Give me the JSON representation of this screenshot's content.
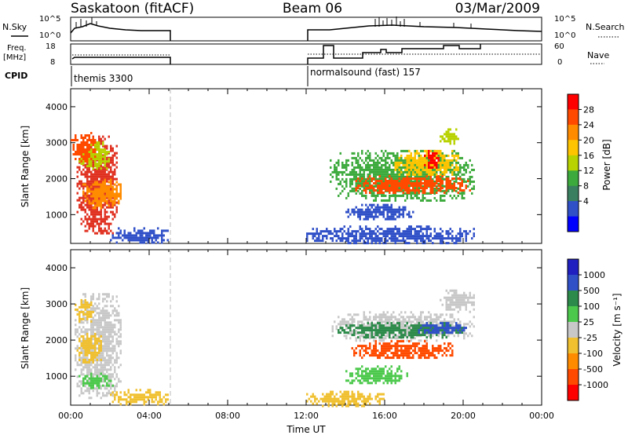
{
  "header": {
    "title": "Saskatoon (fitACF)",
    "beam": "Beam 06",
    "date": "03/Mar/2009"
  },
  "panels": {
    "nsky_label": "N.Sky",
    "nsearch_label": "N.Search",
    "freq_label_1": "Freq.",
    "freq_label_2": "[MHz]",
    "nave_label": "Nave",
    "cpid_label": "CPID",
    "nsky_ticks": [
      "10^5",
      "10^0"
    ],
    "nsearch_ticks": [
      "10^5",
      "10^0"
    ],
    "freq_ticks": [
      "18",
      "8"
    ],
    "nave_ticks": [
      "60",
      "0"
    ],
    "cpid_1": "themis 3300",
    "cpid_2": "normalsound (fast) 157"
  },
  "power_colorbar": {
    "label": "Power [dB]",
    "ticks": [
      "28",
      "24",
      "20",
      "16",
      "12",
      "8",
      "4"
    ],
    "colors": [
      "#ff0000",
      "#ff4a00",
      "#ff8c00",
      "#ffc400",
      "#b8d200",
      "#3caa3c",
      "#3a8060",
      "#3050c8",
      "#0000ff"
    ]
  },
  "velocity_colorbar": {
    "label": "Velocity [m s⁻¹]",
    "ticks": [
      "1000",
      "500",
      "100",
      "25",
      "-25",
      "-100",
      "-500",
      "-1000"
    ],
    "colors": [
      "#2020c0",
      "#3050c8",
      "#2c8a4a",
      "#4cc94c",
      "#c8c8c8",
      "#f0c030",
      "#ff8c00",
      "#ff4a00",
      "#ff0000"
    ]
  },
  "chart_data": [
    {
      "type": "heatmap",
      "name": "power",
      "ylabel": "Slant Range [km]",
      "y_ticks": [
        "1000",
        "2000",
        "3000",
        "4000"
      ],
      "ylim": [
        200,
        4500
      ],
      "xlim": [
        0,
        24
      ],
      "blobs": [
        {
          "t0": 0.3,
          "t1": 2.4,
          "r0": 500,
          "r1": 3200,
          "c": "#e03020"
        },
        {
          "t0": 0.6,
          "t1": 2.6,
          "r0": 1200,
          "r1": 2000,
          "c": "#ff8c00"
        },
        {
          "t0": 0.4,
          "t1": 2.0,
          "r0": 2300,
          "r1": 3100,
          "c": "#b8d200"
        },
        {
          "t0": 2.0,
          "t1": 5.0,
          "r0": 200,
          "r1": 650,
          "c": "#3050c8"
        },
        {
          "t0": 0.0,
          "t1": 1.3,
          "r0": 2500,
          "r1": 3300,
          "c": "#ff4a00"
        },
        {
          "t0": 12.0,
          "t1": 20.6,
          "r0": 200,
          "r1": 700,
          "c": "#3050c8"
        },
        {
          "t0": 13.2,
          "t1": 20.6,
          "r0": 1400,
          "r1": 2800,
          "c": "#3caa3c"
        },
        {
          "t0": 14.5,
          "t1": 20.4,
          "r0": 1600,
          "r1": 2100,
          "c": "#ff4a00"
        },
        {
          "t0": 16.5,
          "t1": 19.8,
          "r0": 2100,
          "r1": 2800,
          "c": "#ffc400"
        },
        {
          "t0": 18.0,
          "t1": 18.8,
          "r0": 2300,
          "r1": 2800,
          "c": "#ff0000"
        },
        {
          "t0": 14.0,
          "t1": 17.5,
          "r0": 900,
          "r1": 1300,
          "c": "#3050c8"
        },
        {
          "t0": 18.8,
          "t1": 19.8,
          "r0": 3000,
          "r1": 3400,
          "c": "#b8d200"
        }
      ]
    },
    {
      "type": "heatmap",
      "name": "velocity",
      "ylabel": "Slant Range [km]",
      "y_ticks": [
        "1000",
        "2000",
        "3000",
        "4000"
      ],
      "ylim": [
        200,
        4500
      ],
      "xlim": [
        0,
        24
      ],
      "x_ticks": [
        "00:00",
        "04:00",
        "08:00",
        "12:00",
        "16:00",
        "20:00",
        "00:00"
      ],
      "xlabel": "Time UT",
      "blobs": [
        {
          "t0": 0.2,
          "t1": 2.6,
          "r0": 400,
          "r1": 3300,
          "c": "#c8c8c8"
        },
        {
          "t0": 0.4,
          "t1": 2.2,
          "r0": 700,
          "r1": 1100,
          "c": "#4cc94c"
        },
        {
          "t0": 0.2,
          "t1": 1.2,
          "r0": 2500,
          "r1": 3200,
          "c": "#f0c030"
        },
        {
          "t0": 0.3,
          "t1": 1.6,
          "r0": 1400,
          "r1": 2200,
          "c": "#f0c030"
        },
        {
          "t0": 2.0,
          "t1": 5.0,
          "r0": 200,
          "r1": 650,
          "c": "#f0c030"
        },
        {
          "t0": 12.0,
          "t1": 16.0,
          "r0": 200,
          "r1": 600,
          "c": "#f0c030"
        },
        {
          "t0": 13.3,
          "t1": 20.6,
          "r0": 2000,
          "r1": 2800,
          "c": "#c8c8c8"
        },
        {
          "t0": 14.3,
          "t1": 19.5,
          "r0": 1500,
          "r1": 2000,
          "c": "#ff4a00"
        },
        {
          "t0": 13.6,
          "t1": 20.0,
          "r0": 2100,
          "r1": 2500,
          "c": "#2c8a4a"
        },
        {
          "t0": 17.5,
          "t1": 20.2,
          "r0": 2200,
          "r1": 2500,
          "c": "#3050c8"
        },
        {
          "t0": 14.0,
          "t1": 17.2,
          "r0": 800,
          "r1": 1300,
          "c": "#4cc94c"
        },
        {
          "t0": 18.8,
          "t1": 20.6,
          "r0": 2800,
          "r1": 3400,
          "c": "#c8c8c8"
        }
      ]
    }
  ]
}
